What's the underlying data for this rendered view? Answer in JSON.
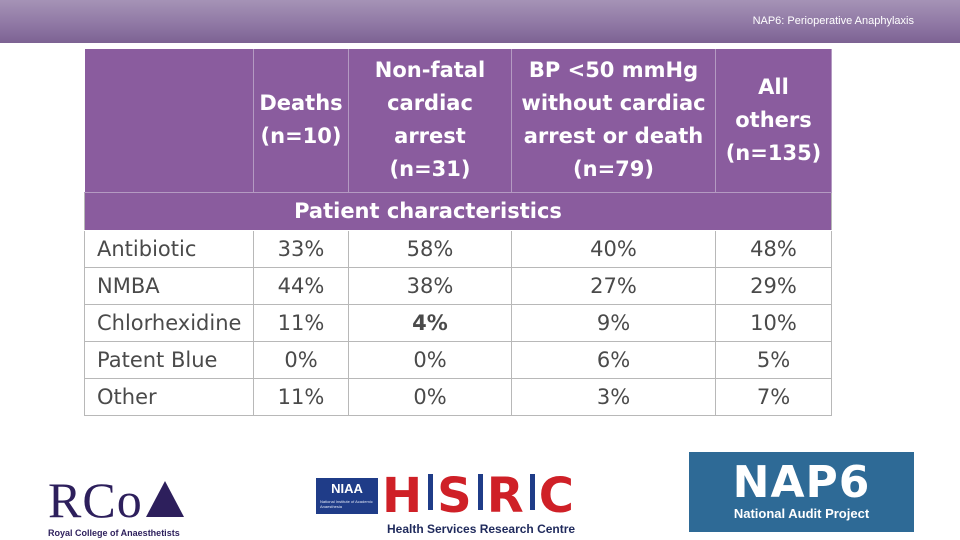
{
  "header": {
    "title": "NAP6: Perioperative Anaphylaxis"
  },
  "table": {
    "columns": [
      {
        "line1": "Deaths",
        "line2": "(n=10)"
      },
      {
        "line1": "Non-fatal",
        "line2": "cardiac arrest",
        "line3": "(n=31)"
      },
      {
        "line1": "BP <50 mmHg",
        "line2": "without cardiac",
        "line3": "arrest or death",
        "line4": "(n=79)"
      },
      {
        "line1": "All",
        "line2": "others",
        "line3": "(n=135)"
      }
    ],
    "section_label": "Patient characteristics",
    "rows": [
      {
        "label": "Antibiotic",
        "values": [
          "33%",
          "58%",
          "40%",
          "48%"
        ]
      },
      {
        "label": "NMBA",
        "values": [
          "44%",
          "38%",
          "27%",
          "29%"
        ]
      },
      {
        "label": "Chlorhexidine",
        "values": [
          "11%",
          "4%",
          "9%",
          "10%"
        ]
      },
      {
        "label": "Patent Blue",
        "values": [
          "0%",
          "0%",
          "6%",
          "5%"
        ]
      },
      {
        "label": "Other",
        "values": [
          "11%",
          "0%",
          "3%",
          "7%"
        ]
      }
    ]
  },
  "logos": {
    "rcoa": {
      "mark": "RCoA",
      "subtitle": "Royal College of Anaesthetists"
    },
    "niaa": {
      "label": "NIAA",
      "subtitle": "National Institute of Academic Anaesthesia"
    },
    "hsrc": {
      "letters": [
        "H",
        "S",
        "R",
        "C"
      ],
      "subtitle": "Health Services Research Centre"
    },
    "nap6": {
      "word": "NAP6",
      "subtitle": "National Audit Project"
    }
  },
  "colors": {
    "purple_header": "#8a5c9e",
    "topbar": "#8e76a3",
    "nap6_blue": "#2e6a96",
    "hsrc_red": "#cf2027"
  }
}
